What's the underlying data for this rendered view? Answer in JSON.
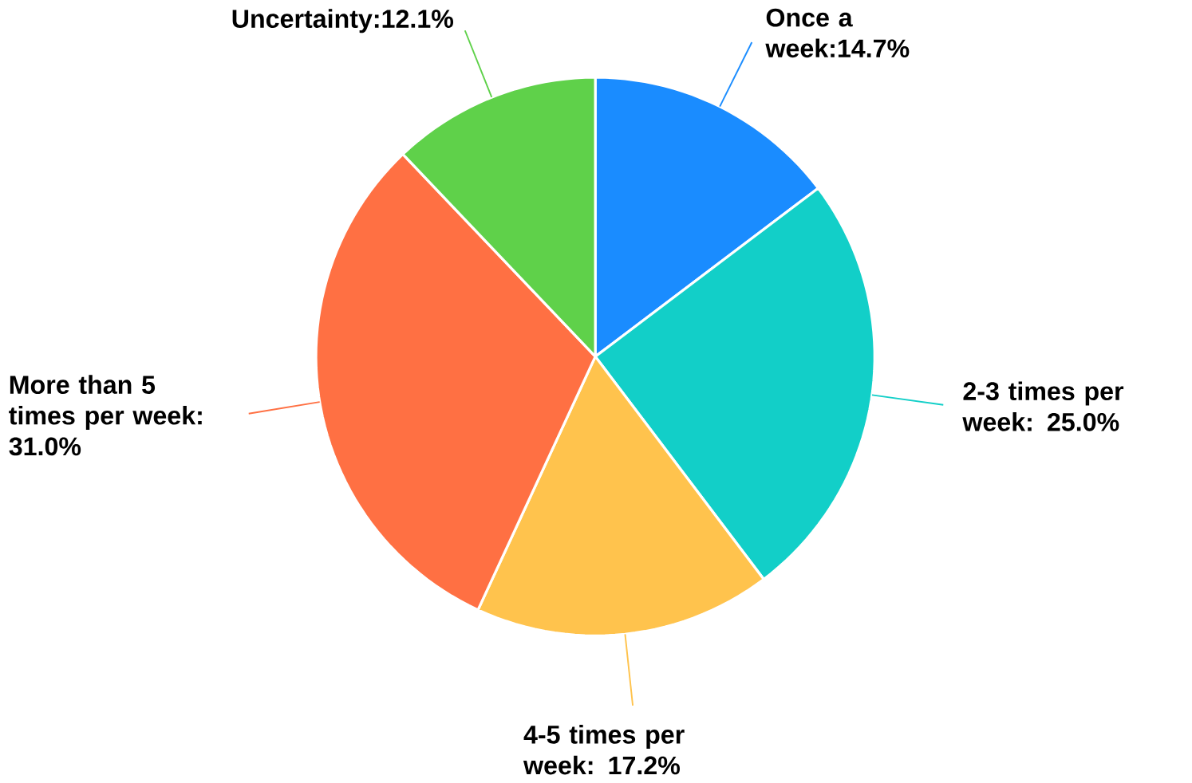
{
  "chart_data": {
    "type": "pie",
    "categories": [
      "Once a week:14.7%",
      "2-3 times per week: 25.0%",
      "4-5 times per week: 17.2%",
      "More than 5 times per week: 31.0%",
      "Uncertainty:12.1%"
    ],
    "values": [
      14.7,
      25.0,
      17.2,
      31.0,
      12.1
    ],
    "colors": [
      "#1a8cff",
      "#12cfc8",
      "#ffc34d",
      "#ff7043",
      "#5fd14a"
    ]
  }
}
